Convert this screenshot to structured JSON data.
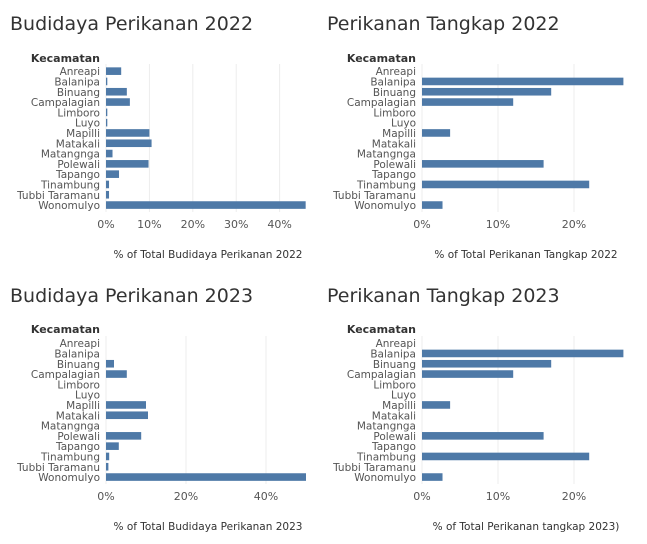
{
  "colors": {
    "bar": "#4e79a7",
    "grid": "#ececec",
    "text": "#555555",
    "title": "#333333"
  },
  "chart_data": [
    {
      "type": "bar",
      "orientation": "horizontal",
      "title": "Budidaya Perikanan 2022",
      "row_header": "Kecamatan",
      "categories": [
        "Anreapi",
        "Balanipa",
        "Binuang",
        "Campalagian",
        "Limboro",
        "Luyo",
        "Mapilli",
        "Matakali",
        "Matangnga",
        "Polewali",
        "Tapango",
        "Tinambung",
        "Tubbi Taramanu",
        "Wonomulyo"
      ],
      "values": [
        3.5,
        0.3,
        4.8,
        5.5,
        0.3,
        0.3,
        10.0,
        10.5,
        1.5,
        9.8,
        3.0,
        0.7,
        0.7,
        46.0
      ],
      "x_ticks": [
        0,
        10,
        20,
        30,
        40
      ],
      "x_tick_labels": [
        "0%",
        "10%",
        "20%",
        "30%",
        "40%"
      ],
      "xlim": [
        0,
        47
      ],
      "xlabel": "% of Total Budidaya Perikanan 2022"
    },
    {
      "type": "bar",
      "orientation": "horizontal",
      "title": "Perikanan Tangkap 2022",
      "row_header": "Kecamatan",
      "categories": [
        "Anreapi",
        "Balanipa",
        "Binuang",
        "Campalagian",
        "Limboro",
        "Luyo",
        "Mapilli",
        "Matakali",
        "Matangnga",
        "Polewali",
        "Tapango",
        "Tinambung",
        "Tubbi Taramanu",
        "Wonomulyo"
      ],
      "values": [
        0,
        26.5,
        17.0,
        12.0,
        0,
        0,
        3.7,
        0,
        0,
        16.0,
        0,
        22.0,
        0,
        2.7
      ],
      "x_ticks": [
        0,
        10,
        20
      ],
      "x_tick_labels": [
        "0%",
        "10%",
        "20%"
      ],
      "xlim": [
        0,
        27.5
      ],
      "xlabel": "% of Total Perikanan Tangkap 2022"
    },
    {
      "type": "bar",
      "orientation": "horizontal",
      "title": "Budidaya Perikanan 2023",
      "row_header": "Kecamatan",
      "categories": [
        "Anreapi",
        "Balanipa",
        "Binuang",
        "Campalagian",
        "Limboro",
        "Luyo",
        "Mapilli",
        "Matakali",
        "Matangnga",
        "Polewali",
        "Tapango",
        "Tinambung",
        "Tubbi Taramanu",
        "Wonomulyo"
      ],
      "values": [
        0,
        0,
        2.0,
        5.2,
        0,
        0,
        10.0,
        10.5,
        0,
        8.8,
        3.2,
        0.8,
        0.6,
        50.0
      ],
      "x_ticks": [
        0,
        20,
        40
      ],
      "x_tick_labels": [
        "0%",
        "20%",
        "40%"
      ],
      "xlim": [
        0,
        51
      ],
      "xlabel": "% of Total Budidaya Perikanan 2023"
    },
    {
      "type": "bar",
      "orientation": "horizontal",
      "title": "Perikanan Tangkap 2023",
      "row_header": "Kecamatan",
      "categories": [
        "Anreapi",
        "Balanipa",
        "Binuang",
        "Campalagian",
        "Limboro",
        "Luyo",
        "Mapilli",
        "Matakali",
        "Matangnga",
        "Polewali",
        "Tapango",
        "Tinambung",
        "Tubbi Taramanu",
        "Wonomulyo"
      ],
      "values": [
        0,
        26.5,
        17.0,
        12.0,
        0,
        0,
        3.7,
        0,
        0,
        16.0,
        0,
        22.0,
        0,
        2.7
      ],
      "x_ticks": [
        0,
        10,
        20
      ],
      "x_tick_labels": [
        "0%",
        "10%",
        "20%"
      ],
      "xlim": [
        0,
        27.5
      ],
      "xlabel": "% of Total Perikanan tangkap 2023)"
    }
  ]
}
